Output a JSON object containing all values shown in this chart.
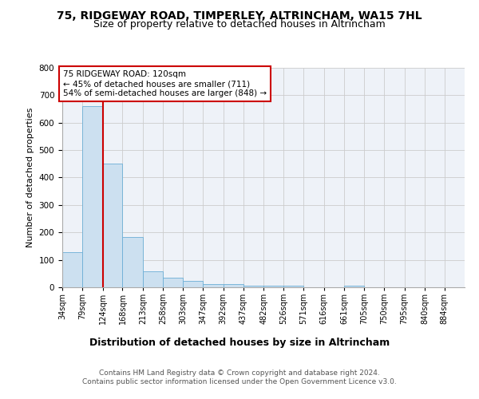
{
  "title_line1": "75, RIDGEWAY ROAD, TIMPERLEY, ALTRINCHAM, WA15 7HL",
  "title_line2": "Size of property relative to detached houses in Altrincham",
  "xlabel": "Distribution of detached houses by size in Altrincham",
  "ylabel": "Number of detached properties",
  "footer_line1": "Contains HM Land Registry data © Crown copyright and database right 2024.",
  "footer_line2": "Contains public sector information licensed under the Open Government Licence v3.0.",
  "property_label": "75 RIDGEWAY ROAD: 120sqm",
  "annotation_line1": "← 45% of detached houses are smaller (711)",
  "annotation_line2": "54% of semi-detached houses are larger (848) →",
  "bin_edges": [
    34,
    79,
    124,
    168,
    213,
    258,
    303,
    347,
    392,
    437,
    482,
    526,
    571,
    616,
    661,
    705,
    750,
    795,
    840,
    884,
    929
  ],
  "bar_heights": [
    128,
    660,
    450,
    183,
    57,
    35,
    22,
    11,
    11,
    6,
    5,
    6,
    0,
    0,
    5,
    0,
    0,
    0,
    0,
    0
  ],
  "bar_color": "#cce0f0",
  "bar_edge_color": "#6baed6",
  "red_line_x": 124,
  "red_line_color": "#cc0000",
  "background_color": "#eef2f8",
  "grid_color": "#cccccc",
  "annotation_box_color": "#cc0000",
  "ylim": [
    0,
    800
  ],
  "title_fontsize": 10,
  "subtitle_fontsize": 9,
  "ylabel_fontsize": 8,
  "xlabel_fontsize": 9,
  "tick_fontsize": 7,
  "annotation_fontsize": 7.5,
  "footer_fontsize": 6.5
}
